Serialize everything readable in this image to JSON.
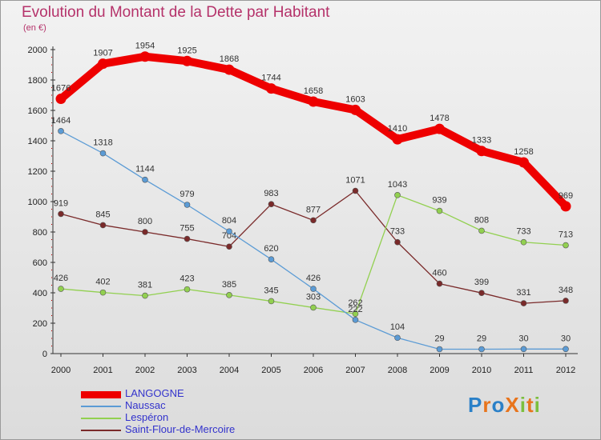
{
  "title": "Evolution du Montant de la Dette par Habitant",
  "unit_label": "(en €)",
  "logo": {
    "text": "ProXiti",
    "letters": [
      "P",
      "r",
      "o",
      "X",
      "i",
      "t",
      "i"
    ],
    "colors": [
      "#2a80c8",
      "#e8741c",
      "#2a80c8",
      "#e8741c",
      "#7cbf3e",
      "#e8741c",
      "#7cbf3e"
    ]
  },
  "chart_data": {
    "type": "line",
    "title": "Evolution du Montant de la Dette par Habitant",
    "ylabel": "(en €)",
    "x": [
      "2000",
      "2001",
      "2002",
      "2003",
      "2004",
      "2005",
      "2006",
      "2007",
      "2008",
      "2009",
      "2010",
      "2011",
      "2012"
    ],
    "ylim": [
      0,
      2000
    ],
    "yticks": [
      0,
      200,
      400,
      600,
      800,
      1000,
      1200,
      1400,
      1600,
      1800,
      2000
    ],
    "grid": false,
    "legend": "bottom-left",
    "series": [
      {
        "name": "LANGOGNE",
        "color": "#ee0000",
        "values": [
          1676,
          1907,
          1954,
          1925,
          1868,
          1744,
          1658,
          1603,
          1410,
          1478,
          1333,
          1258,
          969
        ]
      },
      {
        "name": "Naussac",
        "color": "#5b9bd5",
        "values": [
          1464,
          1318,
          1144,
          979,
          804,
          620,
          426,
          222,
          104,
          29,
          29,
          30,
          30
        ]
      },
      {
        "name": "Lespéron",
        "color": "#92d050",
        "values": [
          426,
          402,
          381,
          423,
          385,
          345,
          303,
          262,
          1043,
          939,
          808,
          733,
          713
        ]
      },
      {
        "name": "Saint-Flour-de-Mercoire",
        "color": "#7a2a2a",
        "values": [
          919,
          845,
          800,
          755,
          704,
          983,
          877,
          1071,
          733,
          460,
          399,
          331,
          348
        ]
      }
    ]
  }
}
